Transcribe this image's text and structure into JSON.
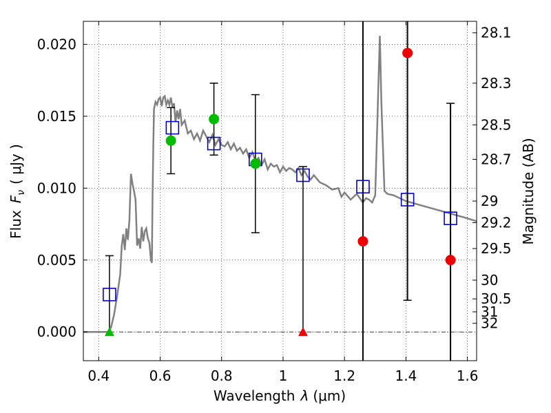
{
  "chart_data": {
    "type": "scatter",
    "xlabel": "Wavelength",
    "xlabel_symbol": "λ",
    "xlabel_unit": "(μm)",
    "ylabel": "Flux",
    "ylabel_symbol": "F",
    "ylabel_subscript": "ν",
    "ylabel_unit": "( μJy )",
    "y2label": "Magnitude (AB)",
    "xlim": [
      0.35,
      1.63
    ],
    "ylim": [
      -0.002,
      0.0216
    ],
    "grid": true,
    "x_ticks": [
      0.4,
      0.6,
      0.8,
      1.0,
      1.2,
      1.4,
      1.6
    ],
    "x_tick_labels": [
      "0.4",
      "0.6",
      "0.8",
      "1",
      "1.2",
      "1.4",
      "1.6"
    ],
    "y_ticks": [
      0.0,
      0.005,
      0.01,
      0.015,
      0.02
    ],
    "y_tick_labels": [
      "0.000",
      "0.005",
      "0.010",
      "0.015",
      "0.020"
    ],
    "y2_ticks": [
      {
        "label": "28.1",
        "flux": 0.0208
      },
      {
        "label": "28.3",
        "flux": 0.0173
      },
      {
        "label": "28.5",
        "flux": 0.0144
      },
      {
        "label": "28.7",
        "flux": 0.012
      },
      {
        "label": "29",
        "flux": 0.0091
      },
      {
        "label": "29.2",
        "flux": 0.0076
      },
      {
        "label": "29.5",
        "flux": 0.0058
      },
      {
        "label": "30",
        "flux": 0.0036
      },
      {
        "label": "30.5",
        "flux": 0.0023
      },
      {
        "label": "31",
        "flux": 0.0014
      },
      {
        "label": "32",
        "flux": 0.0006
      }
    ],
    "model_sed": {
      "color": "#808080",
      "x": [
        0.35,
        0.43,
        0.44,
        0.45,
        0.46,
        0.47,
        0.475,
        0.48,
        0.485,
        0.49,
        0.495,
        0.5,
        0.505,
        0.51,
        0.515,
        0.52,
        0.525,
        0.53,
        0.535,
        0.54,
        0.545,
        0.55,
        0.555,
        0.56,
        0.565,
        0.57,
        0.573,
        0.575,
        0.578,
        0.58,
        0.585,
        0.59,
        0.595,
        0.6,
        0.605,
        0.61,
        0.615,
        0.62,
        0.625,
        0.63,
        0.635,
        0.64,
        0.645,
        0.65,
        0.655,
        0.66,
        0.665,
        0.67,
        0.68,
        0.69,
        0.7,
        0.71,
        0.72,
        0.73,
        0.74,
        0.75,
        0.76,
        0.77,
        0.78,
        0.79,
        0.8,
        0.81,
        0.82,
        0.83,
        0.84,
        0.85,
        0.86,
        0.87,
        0.88,
        0.89,
        0.9,
        0.91,
        0.92,
        0.93,
        0.94,
        0.95,
        0.96,
        0.97,
        0.98,
        0.99,
        1.0,
        1.01,
        1.02,
        1.03,
        1.04,
        1.05,
        1.06,
        1.07,
        1.08,
        1.09,
        1.1,
        1.12,
        1.14,
        1.16,
        1.18,
        1.19,
        1.2,
        1.22,
        1.24,
        1.26,
        1.27,
        1.28,
        1.29,
        1.3,
        1.31,
        1.315,
        1.32,
        1.33,
        1.34,
        1.36,
        1.4,
        1.45,
        1.5,
        1.55,
        1.6,
        1.63
      ],
      "y": [
        0.0,
        0.0,
        0.0003,
        0.0012,
        0.0025,
        0.004,
        0.006,
        0.0068,
        0.0057,
        0.0072,
        0.0064,
        0.0078,
        0.011,
        0.0103,
        0.0098,
        0.0092,
        0.006,
        0.0065,
        0.0058,
        0.0073,
        0.0063,
        0.007,
        0.0072,
        0.0065,
        0.0062,
        0.005,
        0.0048,
        0.009,
        0.0133,
        0.0155,
        0.016,
        0.0158,
        0.0162,
        0.0163,
        0.0157,
        0.0163,
        0.0164,
        0.0158,
        0.0161,
        0.0158,
        0.0163,
        0.0156,
        0.0159,
        0.0146,
        0.0154,
        0.0148,
        0.0155,
        0.0144,
        0.0147,
        0.0138,
        0.014,
        0.0134,
        0.0138,
        0.0133,
        0.014,
        0.0136,
        0.0132,
        0.0137,
        0.013,
        0.0134,
        0.013,
        0.0129,
        0.0132,
        0.0127,
        0.0131,
        0.0126,
        0.0128,
        0.0124,
        0.0127,
        0.0121,
        0.0125,
        0.0119,
        0.0121,
        0.0116,
        0.012,
        0.0113,
        0.0117,
        0.0115,
        0.0116,
        0.0111,
        0.0115,
        0.0112,
        0.0114,
        0.0113,
        0.0111,
        0.0114,
        0.0109,
        0.0112,
        0.0108,
        0.0106,
        0.0109,
        0.0104,
        0.0102,
        0.0099,
        0.01,
        0.0094,
        0.0097,
        0.0092,
        0.0096,
        0.009,
        0.0093,
        0.0092,
        0.009,
        0.0095,
        0.017,
        0.0206,
        0.016,
        0.0098,
        0.0096,
        0.0095,
        0.0091,
        0.0088,
        0.0085,
        0.0082,
        0.0079,
        0.0077
      ]
    },
    "model_band_fluxes": {
      "marker": "open-square",
      "color": "#0000cc",
      "points": [
        {
          "x": 0.435,
          "y": 0.0026
        },
        {
          "x": 0.64,
          "y": 0.0142
        },
        {
          "x": 0.775,
          "y": 0.0131
        },
        {
          "x": 0.91,
          "y": 0.012
        },
        {
          "x": 1.065,
          "y": 0.0109
        },
        {
          "x": 1.26,
          "y": 0.0101
        },
        {
          "x": 1.405,
          "y": 0.0092
        },
        {
          "x": 1.545,
          "y": 0.0079
        }
      ]
    },
    "observed": [
      {
        "x": 0.435,
        "y": 0.0,
        "yerr_low": 0.0,
        "yerr_high": 0.0053,
        "marker": "triangle",
        "color": "#00bb00"
      },
      {
        "x": 0.635,
        "y": 0.0133,
        "yerr_low": 0.011,
        "yerr_high": 0.0156,
        "marker": "circle",
        "color": "#00bb00"
      },
      {
        "x": 0.775,
        "y": 0.0148,
        "yerr_low": 0.0123,
        "yerr_high": 0.0173,
        "marker": "circle",
        "color": "#00bb00"
      },
      {
        "x": 0.91,
        "y": 0.0117,
        "yerr_low": 0.0069,
        "yerr_high": 0.0165,
        "marker": "circle",
        "color": "#00bb00"
      },
      {
        "x": 1.065,
        "y": 0.0,
        "yerr_low": 0.0,
        "yerr_high": 0.0115,
        "marker": "triangle",
        "color": "#ee0000"
      },
      {
        "x": 1.26,
        "y": 0.0063,
        "yerr_low": -0.002,
        "yerr_high": 0.0216,
        "marker": "circle",
        "color": "#ee0000"
      },
      {
        "x": 1.405,
        "y": 0.0194,
        "yerr_low": 0.0022,
        "yerr_high": 0.0216,
        "marker": "circle",
        "color": "#ee0000"
      },
      {
        "x": 1.545,
        "y": 0.005,
        "yerr_low": -0.002,
        "yerr_high": 0.0159,
        "marker": "circle",
        "color": "#ee0000"
      }
    ]
  }
}
